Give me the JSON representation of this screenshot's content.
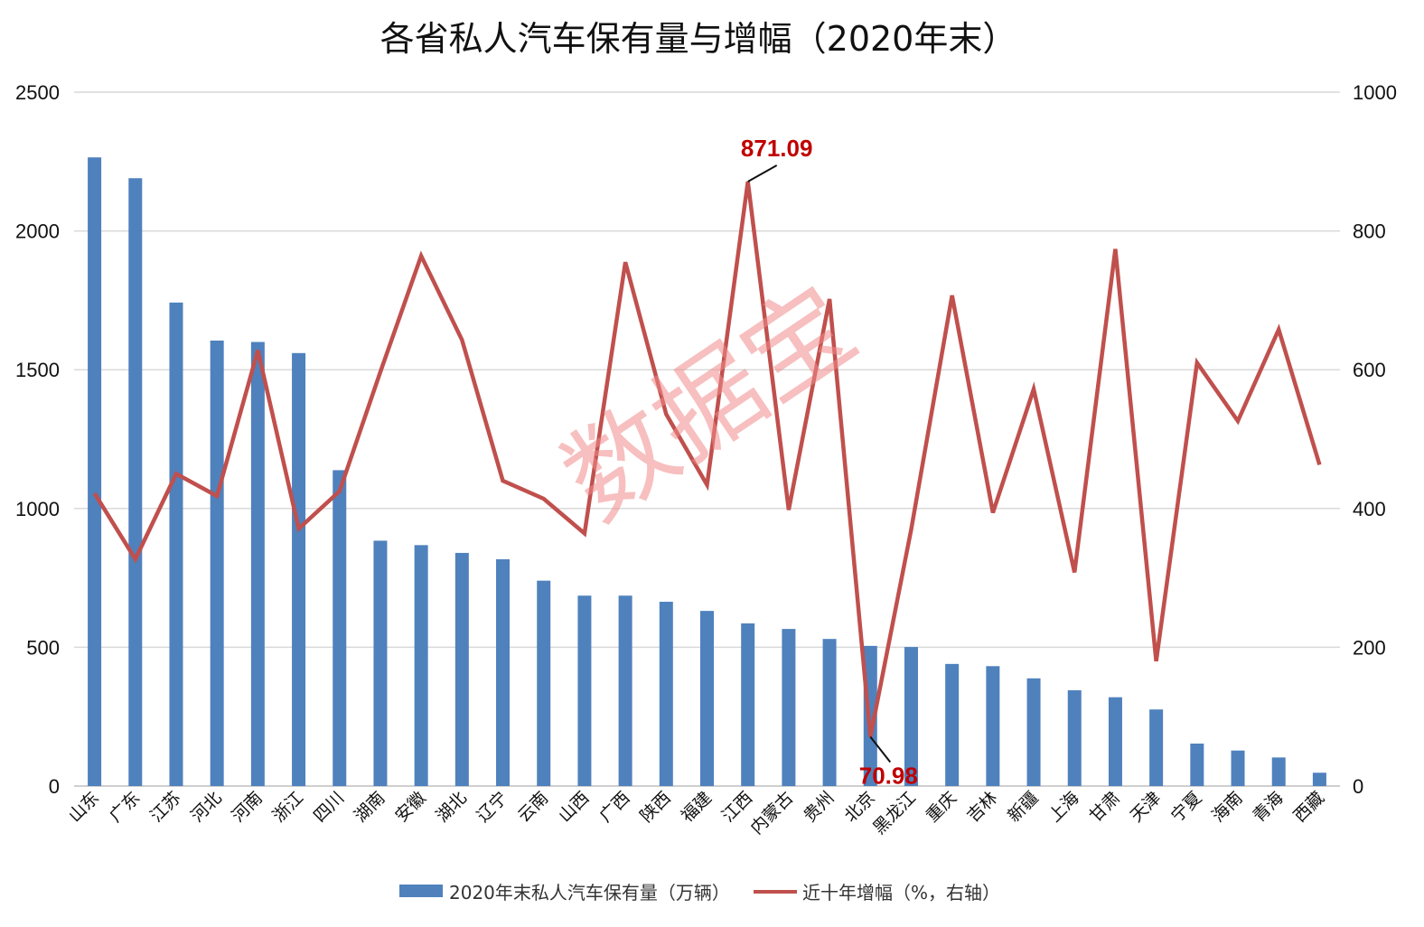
{
  "chart_data": {
    "type": "bar",
    "title": "各省私人汽车保有量与增幅（2020年末）",
    "categories": [
      "山东",
      "广东",
      "江苏",
      "河北",
      "河南",
      "浙江",
      "四川",
      "湖南",
      "安徽",
      "湖北",
      "辽宁",
      "云南",
      "山西",
      "广西",
      "陕西",
      "福建",
      "江西",
      "内蒙古",
      "贵州",
      "北京",
      "黑龙江",
      "重庆",
      "吉林",
      "新疆",
      "上海",
      "甘肃",
      "天津",
      "宁夏",
      "海南",
      "青海",
      "西藏"
    ],
    "series": [
      {
        "name": "2020年末私人汽车保有量（万辆）",
        "type": "bar",
        "axis": "left",
        "color": "#4f81bd",
        "values": [
          2265,
          2190,
          1742,
          1605,
          1600,
          1560,
          1138,
          884,
          868,
          840,
          817,
          740,
          686,
          686,
          664,
          631,
          586,
          566,
          530,
          505,
          501,
          440,
          432,
          388,
          345,
          320,
          276,
          153,
          128,
          103,
          48
        ]
      },
      {
        "name": "近十年增幅（%，右轴）",
        "type": "line",
        "axis": "right",
        "color": "#c0504d",
        "values": [
          422,
          327,
          450,
          418,
          628,
          371,
          425,
          597,
          764,
          643,
          440,
          414,
          364,
          755,
          536,
          434,
          871.09,
          398,
          702,
          70.98,
          370,
          707,
          394,
          572,
          308,
          774,
          180,
          610,
          526,
          658,
          463
        ]
      }
    ],
    "y_left": {
      "min": 0,
      "max": 2500,
      "ticks": [
        "0",
        "500",
        "1000",
        "1500",
        "2000",
        "2500"
      ]
    },
    "y_right": {
      "min": 0,
      "max": 1000,
      "ticks": [
        "0",
        "200",
        "400",
        "600",
        "800",
        "1000"
      ]
    },
    "annotations": [
      {
        "category": "江西",
        "label": "871.09",
        "color": "#c00000"
      },
      {
        "category": "北京",
        "label": "70.98",
        "color": "#c00000"
      }
    ],
    "grid": true,
    "legend_position": "bottom"
  },
  "watermark": {
    "text": "数据宝",
    "color": "#f28b8b"
  }
}
